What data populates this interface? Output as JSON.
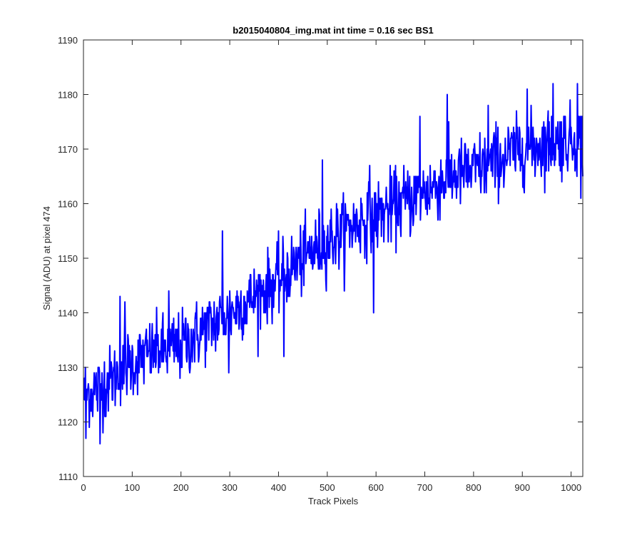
{
  "chart_data": {
    "type": "line",
    "title": "b2015040804_img.mat int time = 0.16 sec   BS1",
    "xlabel": "Track Pixels",
    "ylabel": "Signal (ADU) at pixel 474",
    "xlim": [
      0,
      1024
    ],
    "ylim": [
      1110,
      1190
    ],
    "xticks": [
      "0",
      "100",
      "200",
      "300",
      "400",
      "500",
      "600",
      "700",
      "800",
      "900",
      "1000"
    ],
    "yticks": [
      "1110",
      "1120",
      "1130",
      "1140",
      "1150",
      "1160",
      "1170",
      "1180",
      "1190"
    ],
    "grid": false,
    "box": true,
    "series": [
      {
        "color": "#0000ff",
        "x_start": 1,
        "x_step": 1,
        "trend_description": "noisy signal rising roughly linearly from ~1125 at x=1 to ~1172 at x=1024",
        "anchor_points": [
          {
            "x": 1,
            "y": 1125
          },
          {
            "x": 30,
            "y": 1126
          },
          {
            "x": 60,
            "y": 1128
          },
          {
            "x": 100,
            "y": 1131
          },
          {
            "x": 150,
            "y": 1133
          },
          {
            "x": 200,
            "y": 1134
          },
          {
            "x": 250,
            "y": 1137
          },
          {
            "x": 300,
            "y": 1140
          },
          {
            "x": 350,
            "y": 1143
          },
          {
            "x": 400,
            "y": 1146
          },
          {
            "x": 450,
            "y": 1150
          },
          {
            "x": 500,
            "y": 1153
          },
          {
            "x": 550,
            "y": 1156
          },
          {
            "x": 600,
            "y": 1158
          },
          {
            "x": 650,
            "y": 1160
          },
          {
            "x": 700,
            "y": 1162
          },
          {
            "x": 750,
            "y": 1165
          },
          {
            "x": 800,
            "y": 1166
          },
          {
            "x": 850,
            "y": 1168
          },
          {
            "x": 900,
            "y": 1170
          },
          {
            "x": 950,
            "y": 1171
          },
          {
            "x": 1024,
            "y": 1172
          }
        ],
        "noise_sd": 3.2,
        "spikes": [
          {
            "x": 5,
            "y": 1117
          },
          {
            "x": 34,
            "y": 1116
          },
          {
            "x": 75,
            "y": 1143
          },
          {
            "x": 85,
            "y": 1142
          },
          {
            "x": 175,
            "y": 1144
          },
          {
            "x": 285,
            "y": 1155
          },
          {
            "x": 298,
            "y": 1129
          },
          {
            "x": 411,
            "y": 1132
          },
          {
            "x": 490,
            "y": 1168
          },
          {
            "x": 595,
            "y": 1140
          },
          {
            "x": 587,
            "y": 1167
          },
          {
            "x": 690,
            "y": 1176
          },
          {
            "x": 746,
            "y": 1180
          },
          {
            "x": 830,
            "y": 1178
          },
          {
            "x": 910,
            "y": 1181
          },
          {
            "x": 963,
            "y": 1182
          },
          {
            "x": 1013,
            "y": 1182
          },
          {
            "x": 1020,
            "y": 1161
          }
        ],
        "n_points": 1024
      }
    ]
  }
}
